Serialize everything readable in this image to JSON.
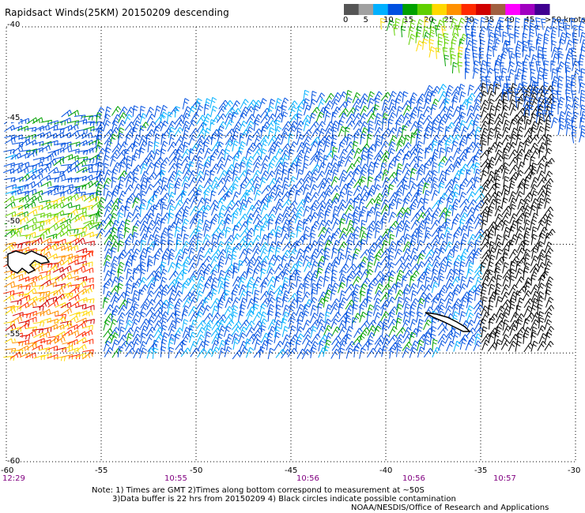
{
  "title": "Rapidsact Winds(25KM) 20150209 descending",
  "legend": {
    "labels": [
      "0",
      "5",
      "10",
      "15",
      "20",
      "25",
      "30",
      "35",
      "40",
      "45",
      ">50 knots"
    ],
    "colors": [
      "#555555",
      "#a0a0a0",
      "#00b0ff",
      "#0050e0",
      "#00a000",
      "#60d000",
      "#ffd800",
      "#ff9000",
      "#ff2a00",
      "#d00000",
      "#a06040",
      "#ff00ff",
      "#a000c0",
      "#400090"
    ]
  },
  "axes": {
    "lat_labels": [
      "-40",
      "-45",
      "-50",
      "-55",
      "-60"
    ],
    "lon_labels": [
      "-60",
      "-55",
      "-50",
      "-45",
      "-40",
      "-35",
      "-30"
    ],
    "times": [
      "12:29",
      "10:55",
      "10:56",
      "10:56",
      "10:57"
    ]
  },
  "notes": {
    "line1": "Note: 1) Times are GMT 2)Times along bottom correspond to measurement at ~50S",
    "line2": "3)Data buffer is 22 hrs from 20150209 4) Black circles indicate possible contamination",
    "credit": "NOAA/NESDIS/Office of Research and Applications"
  },
  "map": {
    "lon_range": [
      -60,
      -30
    ],
    "lat_range": [
      -60,
      -40
    ],
    "grid": "dotted",
    "land": [
      "Falkland Islands",
      "South Georgia"
    ],
    "wind_barbs": "colored by speed in knots"
  }
}
